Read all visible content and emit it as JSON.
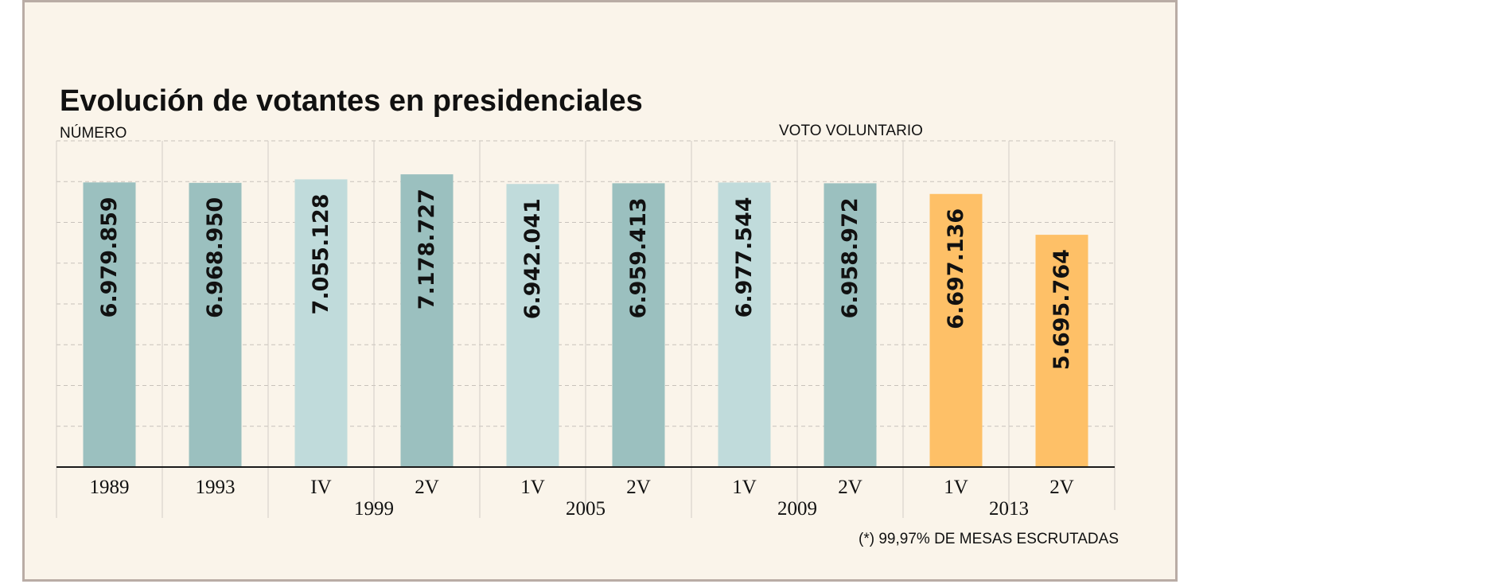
{
  "chart_data": {
    "type": "bar",
    "title": "Evolución de votantes en presidenciales",
    "ylabel": "NÚMERO",
    "annotation": "VOTO VOLUNTARIO",
    "footnote": "(*) 99,97% DE MESAS ESCRUTADAS",
    "ylim": [
      0,
      8000000
    ],
    "gridlines": 8,
    "bars": [
      {
        "label": "1989",
        "value": 6979859,
        "value_label": "6.979.859",
        "color": "#9bc0bf"
      },
      {
        "label": "1993",
        "value": 6968950,
        "value_label": "6.968.950",
        "color": "#9bc0bf"
      },
      {
        "label": "IV",
        "value": 7055128,
        "value_label": "7.055.128",
        "color": "#c0dbdb"
      },
      {
        "label": "2V",
        "value": 7178727,
        "value_label": "7.178.727",
        "color": "#9bc0bf"
      },
      {
        "label": "1V",
        "value": 6942041,
        "value_label": "6.942.041",
        "color": "#c0dbdb"
      },
      {
        "label": "2V",
        "value": 6959413,
        "value_label": "6.959.413",
        "color": "#9bc0bf"
      },
      {
        "label": "1V",
        "value": 6977544,
        "value_label": "6.977.544",
        "color": "#c0dbdb"
      },
      {
        "label": "2V",
        "value": 6958972,
        "value_label": "6.958.972",
        "color": "#9bc0bf"
      },
      {
        "label": "1V",
        "value": 6697136,
        "value_label": "6.697.136",
        "color": "#fec067"
      },
      {
        "label": "2V",
        "value": 5695764,
        "value_label": "5.695.764",
        "color": "#fec067"
      }
    ],
    "groups": [
      {
        "label": "1999",
        "from": 2,
        "to": 3
      },
      {
        "label": "2005",
        "from": 4,
        "to": 5
      },
      {
        "label": "2009",
        "from": 6,
        "to": 7
      },
      {
        "label": "2013",
        "from": 8,
        "to": 9
      }
    ]
  }
}
